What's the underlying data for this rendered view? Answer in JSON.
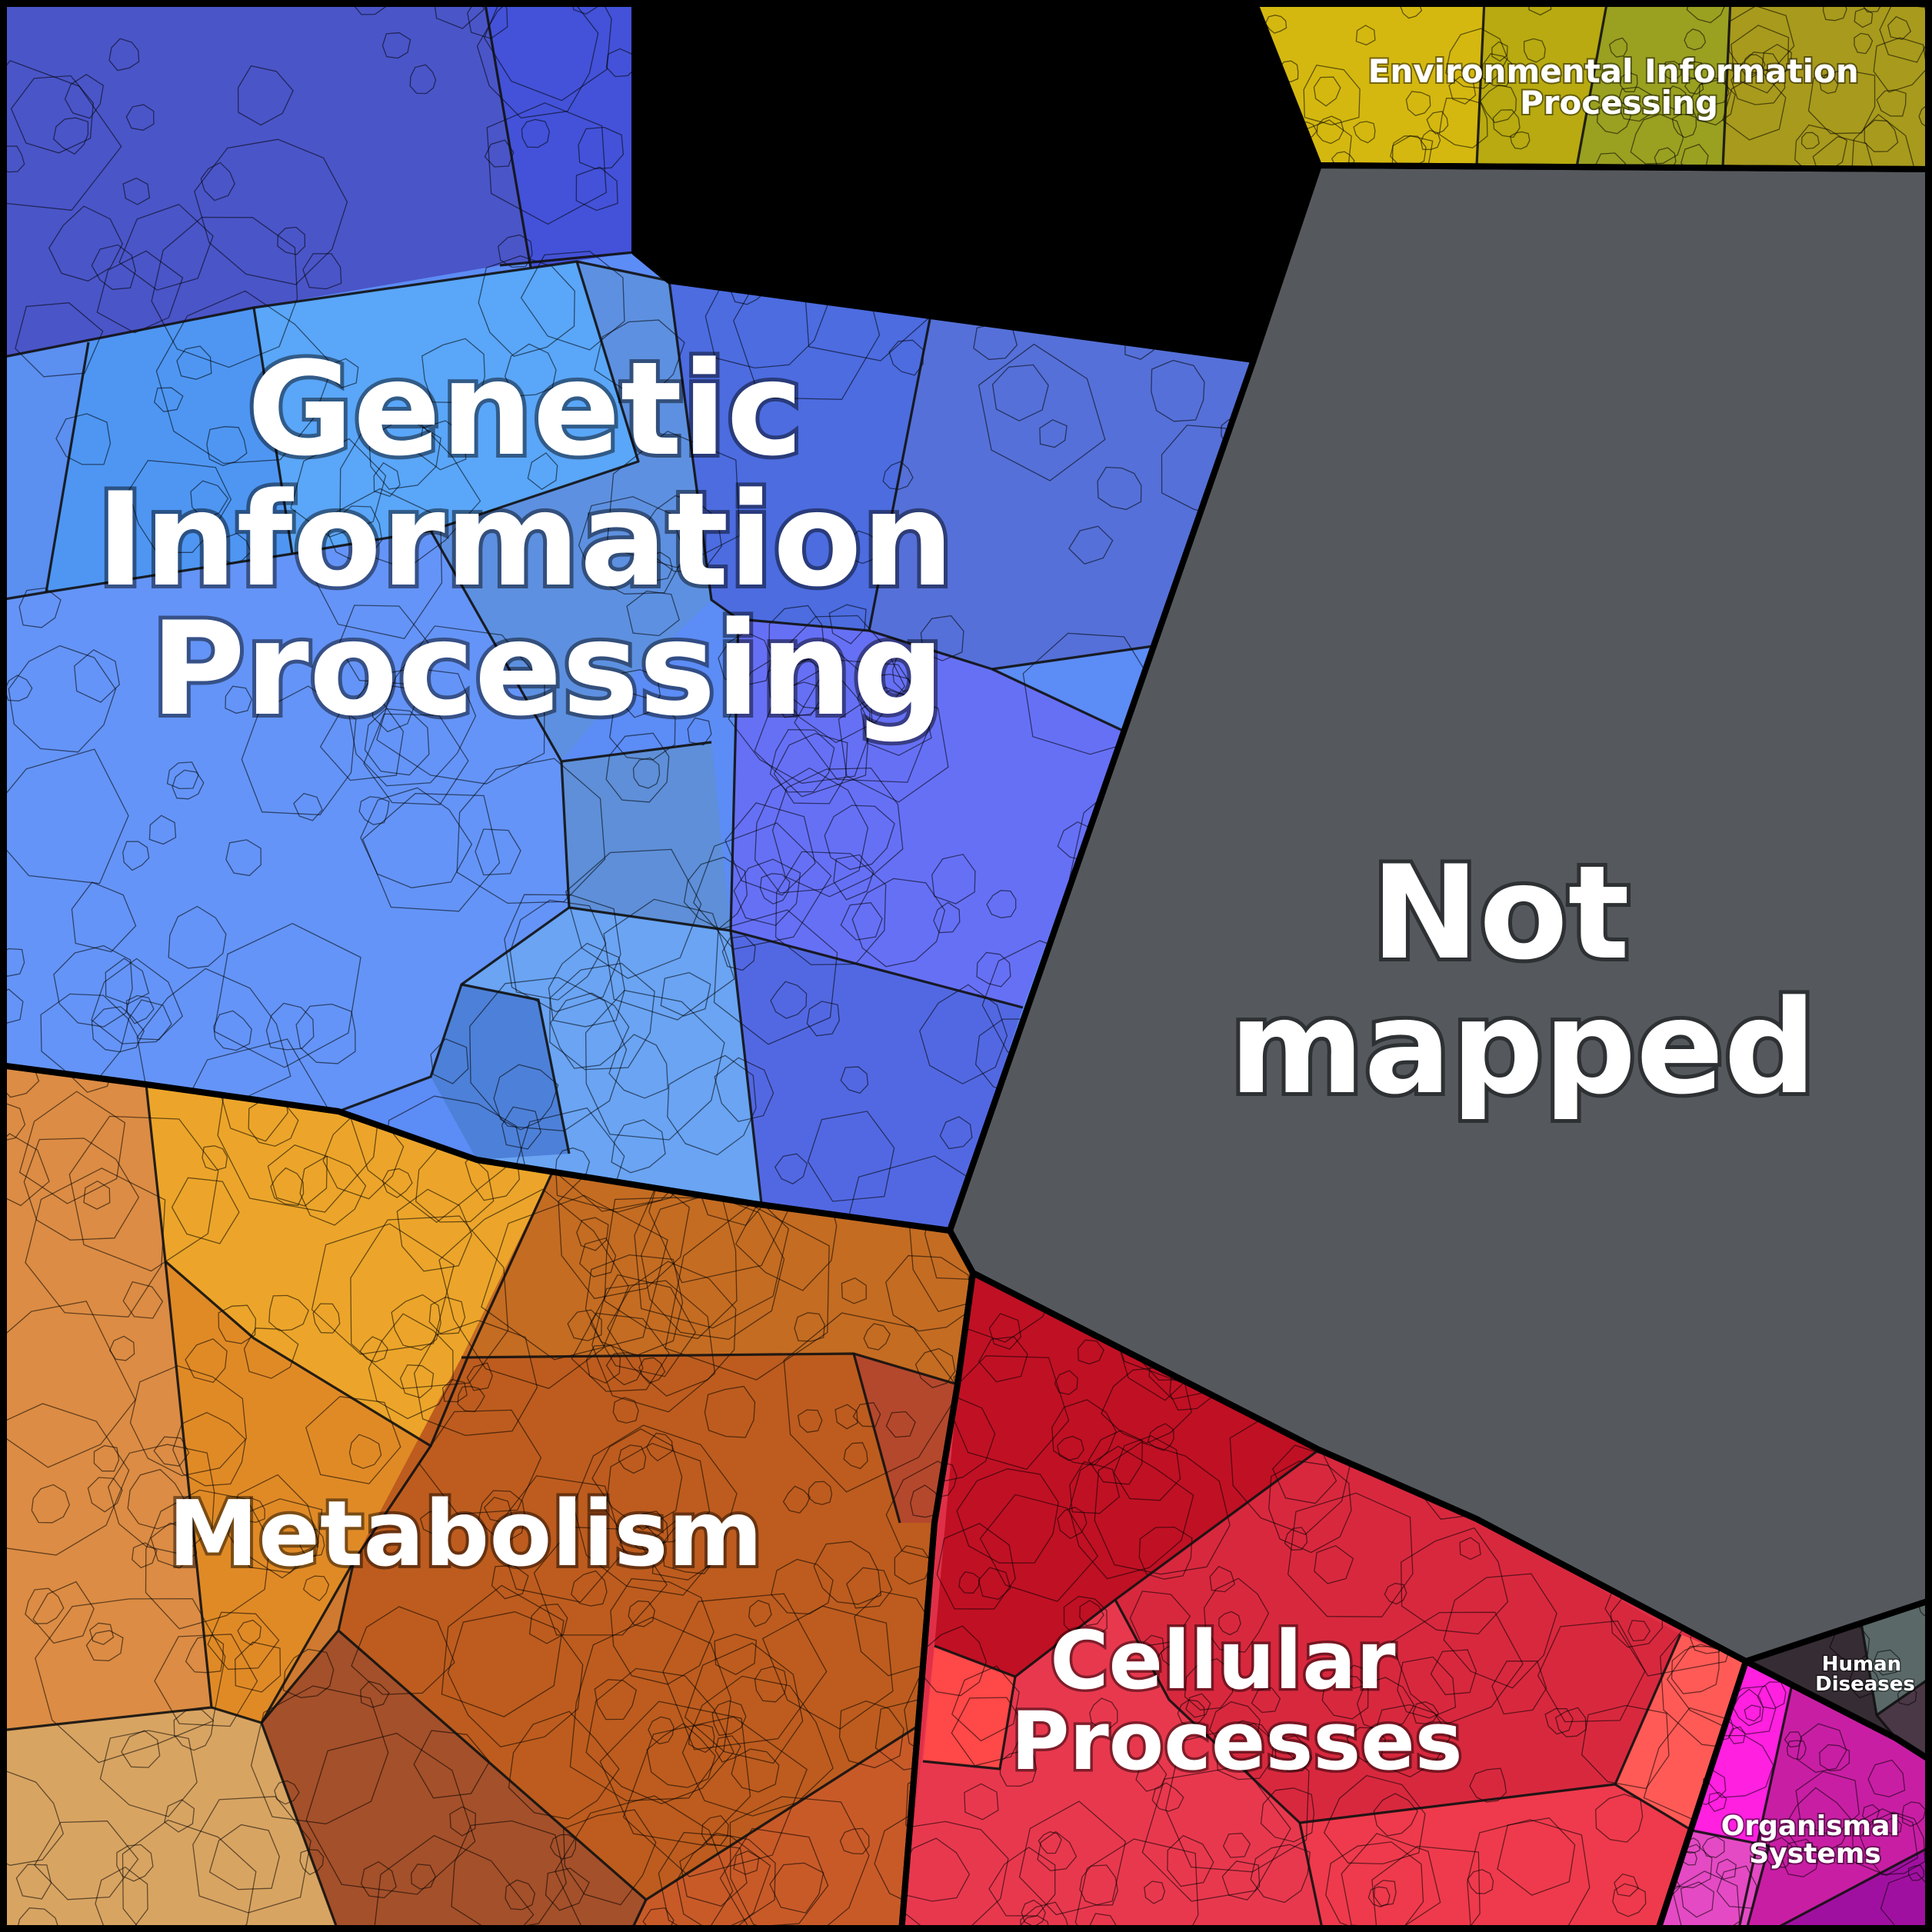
{
  "diagram": {
    "type": "voronoi-treemap",
    "regions": [
      {
        "id": "genetic",
        "label_lines": [
          "Genetic",
          "Information",
          "Processing"
        ],
        "colors": [
          "#5b7de8",
          "#4a5fd0",
          "#7fb8f0",
          "#5aa0f5",
          "#6a74f0",
          "#4cb0f0",
          "#5f8fe8"
        ],
        "tone": "#5c8cf5"
      },
      {
        "id": "not-mapped",
        "label_lines": [
          "Not",
          "mapped"
        ],
        "colors": [
          "#55595d"
        ],
        "tone": "#55595d"
      },
      {
        "id": "metabolism",
        "label_lines": [
          "Metabolism"
        ],
        "colors": [
          "#d98a3a",
          "#c9661f",
          "#f0a830",
          "#d49b5a",
          "#e57c22",
          "#b85a2a",
          "#dcae6a"
        ],
        "tone": "#cf7a30"
      },
      {
        "id": "cellular",
        "label_lines": [
          "Cellular",
          "Processes"
        ],
        "colors": [
          "#e23a4e",
          "#c00f24",
          "#f05060",
          "#d62840",
          "#ff5a5a",
          "#b81030"
        ],
        "tone": "#e03048"
      },
      {
        "id": "environmental",
        "label_lines": [
          "Environmental Information",
          "Processing"
        ],
        "colors": [
          "#c9b010",
          "#a8a820",
          "#d8c000",
          "#909a18"
        ],
        "tone": "#b8a818"
      },
      {
        "id": "human-diseases",
        "label_lines": [
          "Human",
          "Diseases"
        ],
        "colors": [
          "#3a3038",
          "#5a6a6a",
          "#4a3a48"
        ],
        "tone": "#3e343c"
      },
      {
        "id": "organismal",
        "label_lines": [
          "Organismal",
          "Systems"
        ],
        "colors": [
          "#c81ea0",
          "#e040c0",
          "#ff30e0",
          "#a010a0"
        ],
        "tone": "#d028b0"
      }
    ]
  }
}
